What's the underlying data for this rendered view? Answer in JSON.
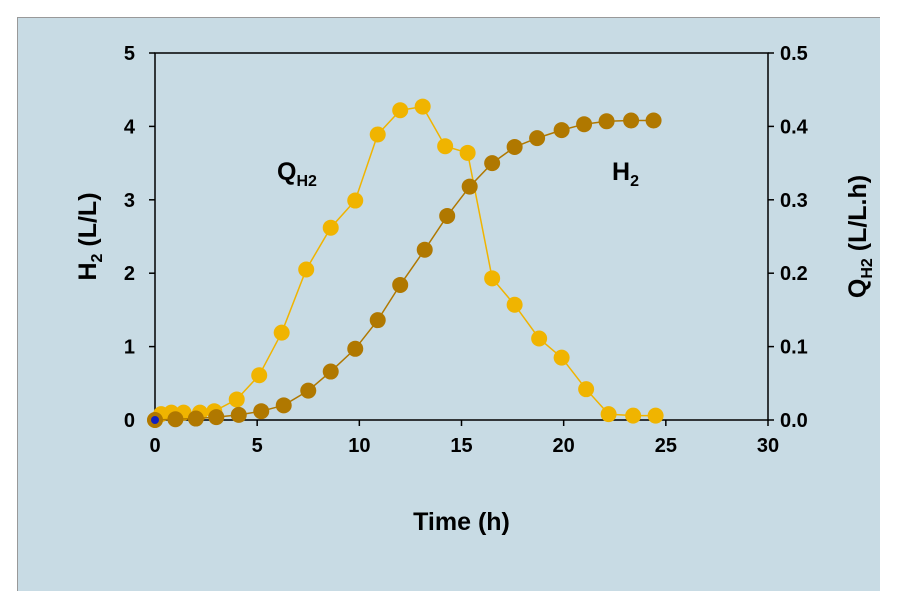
{
  "chart_data": {
    "type": "line",
    "title": "",
    "xlabel": "Time (h)",
    "ylabel_main": "H",
    "ylabel_sub": "2",
    "ylabel_tail": " (L/L)",
    "y2label_main": "Q",
    "y2label_sub": "H2",
    "y2label_tail": " (L/L.h)",
    "xlim": [
      0,
      30
    ],
    "ylim": [
      0,
      5
    ],
    "y2lim": [
      0,
      0.5
    ],
    "x_ticks": [
      "0",
      "5",
      "10",
      "15",
      "20",
      "25",
      "30"
    ],
    "y_ticks": [
      "0",
      "1",
      "2",
      "3",
      "4",
      "5"
    ],
    "y2_ticks": [
      "0.0",
      "0.1",
      "0.2",
      "0.3",
      "0.4",
      "0.5"
    ],
    "grid": false,
    "series": [
      {
        "label_main": "Q",
        "label_sub": "H2",
        "axis": "right",
        "color": "#f0b400",
        "x": [
          0,
          0.3,
          0.8,
          1.4,
          2.2,
          2.9,
          4.0,
          5.1,
          6.2,
          7.4,
          8.6,
          9.8,
          10.9,
          12.0,
          13.1,
          14.2,
          15.3,
          16.5,
          17.6,
          18.8,
          19.9,
          21.1,
          22.2,
          23.4,
          24.5
        ],
        "values": [
          0.0,
          0.008,
          0.01,
          0.01,
          0.01,
          0.012,
          0.028,
          0.061,
          0.119,
          0.205,
          0.262,
          0.299,
          0.389,
          0.422,
          0.427,
          0.373,
          0.364,
          0.193,
          0.157,
          0.111,
          0.085,
          0.042,
          0.008,
          0.006,
          0.006
        ]
      },
      {
        "label_main": "H",
        "label_sub": "2",
        "axis": "left",
        "color": "#b07800",
        "x": [
          0,
          1.0,
          2.0,
          3.0,
          4.1,
          5.2,
          6.3,
          7.5,
          8.6,
          9.8,
          10.9,
          12.0,
          13.2,
          14.3,
          15.4,
          16.5,
          17.6,
          18.7,
          19.9,
          21.0,
          22.1,
          23.3,
          24.4
        ],
        "values": [
          0.0,
          0.01,
          0.02,
          0.04,
          0.07,
          0.12,
          0.2,
          0.4,
          0.66,
          0.97,
          1.36,
          1.84,
          2.32,
          2.78,
          3.18,
          3.5,
          3.72,
          3.84,
          3.95,
          4.03,
          4.07,
          4.08,
          4.08
        ]
      }
    ]
  }
}
